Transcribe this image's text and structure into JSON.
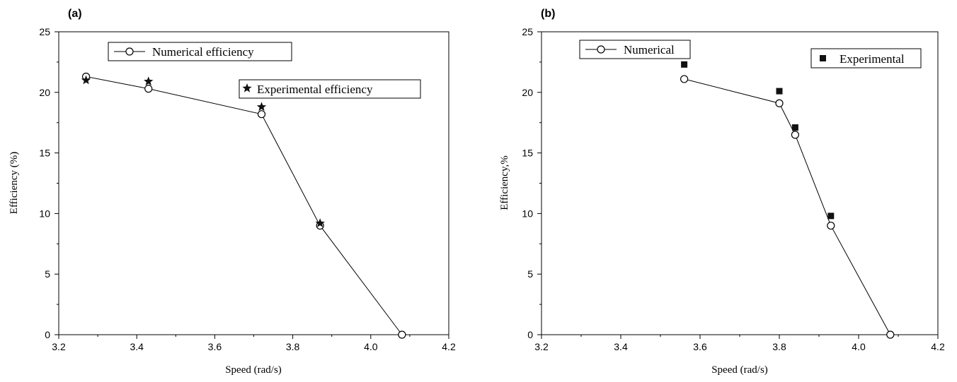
{
  "chart_data": [
    {
      "type": "line",
      "panel_label": "(a)",
      "xlabel": "Speed (rad/s)",
      "ylabel": "Efficiency (%)",
      "xlim": [
        3.2,
        4.2
      ],
      "ylim": [
        0,
        25
      ],
      "xticks": [
        "3.2",
        "3.4",
        "3.6",
        "3.8",
        "4.0",
        "4.2"
      ],
      "yticks": [
        "0",
        "5",
        "10",
        "15",
        "20",
        "25"
      ],
      "grid": false,
      "series": [
        {
          "name": "Numerical efficiency",
          "marker": "circle",
          "line": true,
          "x": [
            3.27,
            3.43,
            3.72,
            3.87,
            4.08
          ],
          "y": [
            21.3,
            20.3,
            18.2,
            9.0,
            0.0
          ]
        },
        {
          "name": "Experimental efficiency",
          "marker": "star",
          "line": false,
          "x": [
            3.27,
            3.43,
            3.72,
            3.87
          ],
          "y": [
            21.0,
            20.9,
            18.8,
            9.2
          ]
        }
      ]
    },
    {
      "type": "line",
      "panel_label": "(b)",
      "xlabel": "Speed (rad/s)",
      "ylabel": "Efficiency,%",
      "xlim": [
        3.2,
        4.2
      ],
      "ylim": [
        0,
        25
      ],
      "xticks": [
        "3.2",
        "3.4",
        "3.6",
        "3.8",
        "4.0",
        "4.2"
      ],
      "yticks": [
        "0",
        "5",
        "10",
        "15",
        "20",
        "25"
      ],
      "grid": false,
      "series": [
        {
          "name": "Numerical",
          "marker": "circle",
          "line": true,
          "x": [
            3.56,
            3.8,
            3.84,
            3.93,
            4.08
          ],
          "y": [
            21.1,
            19.1,
            16.5,
            9.0,
            0.0
          ]
        },
        {
          "name": "Experimental",
          "marker": "square",
          "line": false,
          "x": [
            3.56,
            3.8,
            3.84,
            3.93
          ],
          "y": [
            22.3,
            20.1,
            17.1,
            9.8
          ]
        }
      ]
    }
  ]
}
